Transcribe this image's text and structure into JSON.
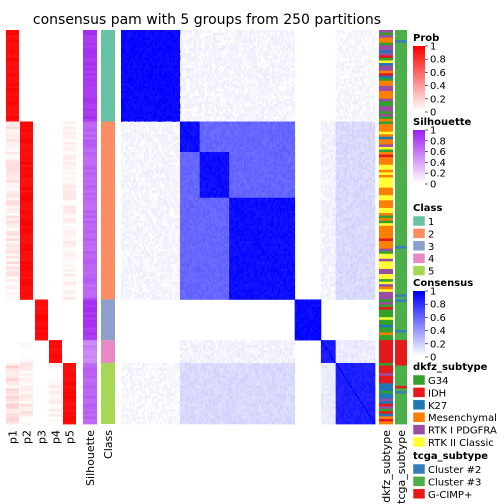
{
  "chart_data": {
    "type": "heatmap",
    "title": "consensus pam with 5 groups from 250 partitions",
    "group_sizes": [
      36,
      70,
      16,
      9,
      24
    ],
    "group_colors": [
      "#66C2A5",
      "#FC8D62",
      "#8DA0CB",
      "#E78AC3",
      "#A6D854"
    ],
    "columns": {
      "prob": [
        "p1",
        "p2",
        "p3",
        "p4",
        "p5"
      ],
      "silhouette": "Silhouette",
      "class": "Class",
      "dkfz": "dkfz_subtype",
      "tcga": "tcga_subtype"
    },
    "legends": [
      {
        "title": "Prob",
        "type": "gradient",
        "ticks": [
          "1",
          "0.8",
          "0.6",
          "0.4",
          "0.2",
          "0"
        ],
        "from": "#FF0000",
        "to": "#FFFFFF"
      },
      {
        "title": "Silhouette",
        "type": "gradient",
        "ticks": [
          "1",
          "0.8",
          "0.6",
          "0.4",
          "0.2",
          "0"
        ],
        "from": "#A020F0",
        "to": "#FFFFFF"
      },
      {
        "title": "Class",
        "type": "discrete",
        "items": [
          {
            "label": "1",
            "color": "#66C2A5"
          },
          {
            "label": "2",
            "color": "#FC8D62"
          },
          {
            "label": "3",
            "color": "#8DA0CB"
          },
          {
            "label": "4",
            "color": "#E78AC3"
          },
          {
            "label": "5",
            "color": "#A6D854"
          }
        ]
      },
      {
        "title": "Consensus",
        "type": "gradient",
        "ticks": [
          "1",
          "0.8",
          "0.6",
          "0.4",
          "0.2",
          "0"
        ],
        "from": "#0000FF",
        "to": "#FFFFFF"
      },
      {
        "title": "dkfz_subtype",
        "type": "discrete",
        "items": [
          {
            "label": "G34",
            "color": "#33A02C"
          },
          {
            "label": "IDH",
            "color": "#E31A1C"
          },
          {
            "label": "K27",
            "color": "#1F78B4"
          },
          {
            "label": "Mesenchymal",
            "color": "#FF7F00"
          },
          {
            "label": "RTK I PDGFRA",
            "color": "#984EA3"
          },
          {
            "label": "RTK II Classic",
            "color": "#FFFF33"
          }
        ]
      },
      {
        "title": "tcga_subtype",
        "type": "discrete",
        "items": [
          {
            "label": "Cluster #2",
            "color": "#377EB8"
          },
          {
            "label": "Cluster #3",
            "color": "#4DAF4A"
          },
          {
            "label": "G-CIMP+",
            "color": "#E41A1C"
          }
        ]
      }
    ]
  }
}
